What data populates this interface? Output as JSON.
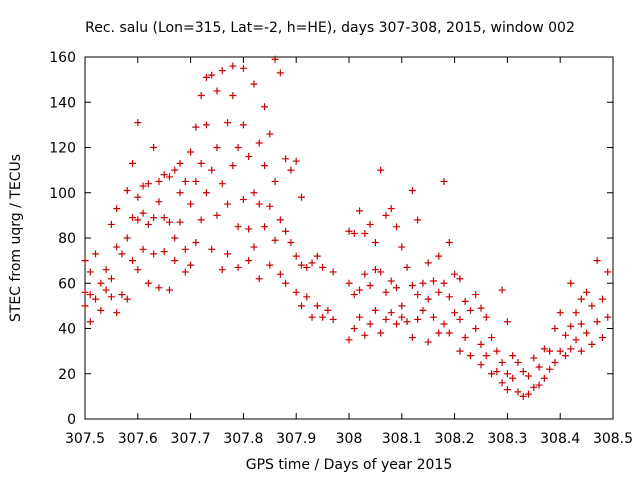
{
  "chart_data": {
    "type": "scatter",
    "title": "Rec. salu (Lon=315, Lat=-2, h=HE), days 307-308, 2015, window 002",
    "xlabel": "GPS time / Days of year 2015",
    "ylabel": "STEC from uqrg / TECUs",
    "xlim": [
      307.5,
      308.5
    ],
    "ylim": [
      0,
      160
    ],
    "xticks": [
      "307.5",
      "307.6",
      "307.7",
      "307.8",
      "307.9",
      "308",
      "308.1",
      "308.2",
      "308.3",
      "308.4",
      "308.5"
    ],
    "yticks": [
      "0",
      "20",
      "40",
      "60",
      "80",
      "100",
      "120",
      "140",
      "160"
    ],
    "grid": false,
    "marker": "+",
    "color": "#cc0000",
    "series": [
      {
        "name": "",
        "points": [
          [
            307.5,
            70
          ],
          [
            307.5,
            56
          ],
          [
            307.5,
            50
          ],
          [
            307.51,
            65
          ],
          [
            307.51,
            55
          ],
          [
            307.51,
            43
          ],
          [
            307.52,
            73
          ],
          [
            307.52,
            53
          ],
          [
            307.53,
            60
          ],
          [
            307.53,
            48
          ],
          [
            307.54,
            66
          ],
          [
            307.54,
            57
          ],
          [
            307.55,
            86
          ],
          [
            307.55,
            62
          ],
          [
            307.55,
            54
          ],
          [
            307.56,
            76
          ],
          [
            307.56,
            93
          ],
          [
            307.56,
            47
          ],
          [
            307.57,
            73
          ],
          [
            307.57,
            55
          ],
          [
            307.58,
            101
          ],
          [
            307.58,
            80
          ],
          [
            307.58,
            53
          ],
          [
            307.59,
            113
          ],
          [
            307.59,
            89
          ],
          [
            307.59,
            70
          ],
          [
            307.6,
            131
          ],
          [
            307.6,
            98
          ],
          [
            307.6,
            88
          ],
          [
            307.6,
            66
          ],
          [
            307.61,
            103
          ],
          [
            307.61,
            91
          ],
          [
            307.61,
            75
          ],
          [
            307.62,
            104
          ],
          [
            307.62,
            86
          ],
          [
            307.62,
            60
          ],
          [
            307.63,
            120
          ],
          [
            307.63,
            89
          ],
          [
            307.63,
            73
          ],
          [
            307.64,
            105
          ],
          [
            307.64,
            96
          ],
          [
            307.64,
            58
          ],
          [
            307.65,
            108
          ],
          [
            307.65,
            89
          ],
          [
            307.65,
            74
          ],
          [
            307.66,
            107
          ],
          [
            307.66,
            87
          ],
          [
            307.66,
            57
          ],
          [
            307.67,
            110
          ],
          [
            307.67,
            80
          ],
          [
            307.67,
            70
          ],
          [
            307.68,
            113
          ],
          [
            307.68,
            100
          ],
          [
            307.68,
            87
          ],
          [
            307.69,
            105
          ],
          [
            307.69,
            75
          ],
          [
            307.69,
            65
          ],
          [
            307.7,
            118
          ],
          [
            307.7,
            95
          ],
          [
            307.7,
            68
          ],
          [
            307.71,
            129
          ],
          [
            307.71,
            105
          ],
          [
            307.71,
            78
          ],
          [
            307.72,
            143
          ],
          [
            307.72,
            113
          ],
          [
            307.72,
            88
          ],
          [
            307.73,
            151
          ],
          [
            307.73,
            130
          ],
          [
            307.73,
            100
          ],
          [
            307.74,
            152
          ],
          [
            307.74,
            110
          ],
          [
            307.74,
            75
          ],
          [
            307.75,
            145
          ],
          [
            307.75,
            120
          ],
          [
            307.75,
            90
          ],
          [
            307.76,
            154
          ],
          [
            307.76,
            104
          ],
          [
            307.76,
            66
          ],
          [
            307.77,
            131
          ],
          [
            307.77,
            95
          ],
          [
            307.77,
            73
          ],
          [
            307.78,
            156
          ],
          [
            307.78,
            143
          ],
          [
            307.78,
            112
          ],
          [
            307.79,
            120
          ],
          [
            307.79,
            85
          ],
          [
            307.79,
            67
          ],
          [
            307.8,
            155
          ],
          [
            307.8,
            130
          ],
          [
            307.8,
            97
          ],
          [
            307.81,
            116
          ],
          [
            307.81,
            84
          ],
          [
            307.81,
            70
          ],
          [
            307.82,
            148
          ],
          [
            307.82,
            100
          ],
          [
            307.82,
            76
          ],
          [
            307.83,
            122
          ],
          [
            307.83,
            95
          ],
          [
            307.83,
            62
          ],
          [
            307.84,
            138
          ],
          [
            307.84,
            112
          ],
          [
            307.84,
            85
          ],
          [
            307.85,
            126
          ],
          [
            307.85,
            94
          ],
          [
            307.85,
            68
          ],
          [
            307.86,
            159
          ],
          [
            307.86,
            105
          ],
          [
            307.86,
            79
          ],
          [
            307.87,
            153
          ],
          [
            307.87,
            88
          ],
          [
            307.87,
            64
          ],
          [
            307.88,
            115
          ],
          [
            307.88,
            83
          ],
          [
            307.88,
            60
          ],
          [
            307.89,
            110
          ],
          [
            307.89,
            78
          ],
          [
            307.9,
            114
          ],
          [
            307.9,
            72
          ],
          [
            307.9,
            56
          ],
          [
            307.91,
            98
          ],
          [
            307.91,
            68
          ],
          [
            307.91,
            50
          ],
          [
            307.92,
            67
          ],
          [
            307.92,
            54
          ],
          [
            307.93,
            69
          ],
          [
            307.93,
            45
          ],
          [
            307.94,
            72
          ],
          [
            307.94,
            50
          ],
          [
            307.95,
            67
          ],
          [
            307.95,
            45
          ],
          [
            307.96,
            48
          ],
          [
            307.97,
            65
          ],
          [
            307.97,
            44
          ],
          [
            308.0,
            83
          ],
          [
            308.0,
            60
          ],
          [
            308.0,
            35
          ],
          [
            308.01,
            82
          ],
          [
            308.01,
            55
          ],
          [
            308.01,
            40
          ],
          [
            308.02,
            92
          ],
          [
            308.02,
            57
          ],
          [
            308.02,
            45
          ],
          [
            308.03,
            82
          ],
          [
            308.03,
            64
          ],
          [
            308.03,
            37
          ],
          [
            308.04,
            86
          ],
          [
            308.04,
            59
          ],
          [
            308.04,
            42
          ],
          [
            308.05,
            78
          ],
          [
            308.05,
            66
          ],
          [
            308.05,
            48
          ],
          [
            308.06,
            110
          ],
          [
            308.06,
            65
          ],
          [
            308.06,
            38
          ],
          [
            308.07,
            90
          ],
          [
            308.07,
            56
          ],
          [
            308.07,
            44
          ],
          [
            308.08,
            93
          ],
          [
            308.08,
            61
          ],
          [
            308.08,
            47
          ],
          [
            308.09,
            85
          ],
          [
            308.09,
            58
          ],
          [
            308.09,
            42
          ],
          [
            308.1,
            76
          ],
          [
            308.1,
            50
          ],
          [
            308.1,
            45
          ],
          [
            308.11,
            67
          ],
          [
            308.11,
            43
          ],
          [
            308.12,
            101
          ],
          [
            308.12,
            59
          ],
          [
            308.12,
            36
          ],
          [
            308.13,
            88
          ],
          [
            308.13,
            55
          ],
          [
            308.13,
            44
          ],
          [
            308.14,
            60
          ],
          [
            308.14,
            48
          ],
          [
            308.15,
            69
          ],
          [
            308.15,
            53
          ],
          [
            308.15,
            34
          ],
          [
            308.16,
            61
          ],
          [
            308.16,
            45
          ],
          [
            308.17,
            72
          ],
          [
            308.17,
            56
          ],
          [
            308.17,
            38
          ],
          [
            308.18,
            105
          ],
          [
            308.18,
            60
          ],
          [
            308.18,
            42
          ],
          [
            308.19,
            78
          ],
          [
            308.19,
            54
          ],
          [
            308.19,
            38
          ],
          [
            308.2,
            64
          ],
          [
            308.2,
            47
          ],
          [
            308.21,
            62
          ],
          [
            308.21,
            44
          ],
          [
            308.21,
            30
          ],
          [
            308.22,
            52
          ],
          [
            308.22,
            36
          ],
          [
            308.23,
            48
          ],
          [
            308.23,
            28
          ],
          [
            308.24,
            55
          ],
          [
            308.24,
            40
          ],
          [
            308.25,
            49
          ],
          [
            308.25,
            33
          ],
          [
            308.25,
            24
          ],
          [
            308.26,
            45
          ],
          [
            308.26,
            28
          ],
          [
            308.27,
            36
          ],
          [
            308.27,
            20
          ],
          [
            308.28,
            30
          ],
          [
            308.28,
            21
          ],
          [
            308.29,
            57
          ],
          [
            308.29,
            25
          ],
          [
            308.29,
            16
          ],
          [
            308.3,
            43
          ],
          [
            308.3,
            20
          ],
          [
            308.3,
            13
          ],
          [
            308.31,
            28
          ],
          [
            308.31,
            18
          ],
          [
            308.32,
            25
          ],
          [
            308.32,
            12
          ],
          [
            308.33,
            21
          ],
          [
            308.33,
            10
          ],
          [
            308.34,
            19
          ],
          [
            308.34,
            11
          ],
          [
            308.35,
            27
          ],
          [
            308.35,
            14
          ],
          [
            308.36,
            23
          ],
          [
            308.36,
            15
          ],
          [
            308.37,
            31
          ],
          [
            308.37,
            18
          ],
          [
            308.38,
            30
          ],
          [
            308.38,
            22
          ],
          [
            308.39,
            40
          ],
          [
            308.39,
            25
          ],
          [
            308.4,
            47
          ],
          [
            308.4,
            30
          ],
          [
            308.41,
            37
          ],
          [
            308.41,
            28
          ],
          [
            308.42,
            60
          ],
          [
            308.42,
            41
          ],
          [
            308.42,
            31
          ],
          [
            308.43,
            47
          ],
          [
            308.43,
            35
          ],
          [
            308.44,
            53
          ],
          [
            308.44,
            42
          ],
          [
            308.44,
            30
          ],
          [
            308.45,
            56
          ],
          [
            308.45,
            38
          ],
          [
            308.46,
            50
          ],
          [
            308.46,
            33
          ],
          [
            308.47,
            70
          ],
          [
            308.47,
            43
          ],
          [
            308.48,
            53
          ],
          [
            308.48,
            36
          ],
          [
            308.49,
            65
          ],
          [
            308.49,
            45
          ]
        ]
      }
    ]
  }
}
